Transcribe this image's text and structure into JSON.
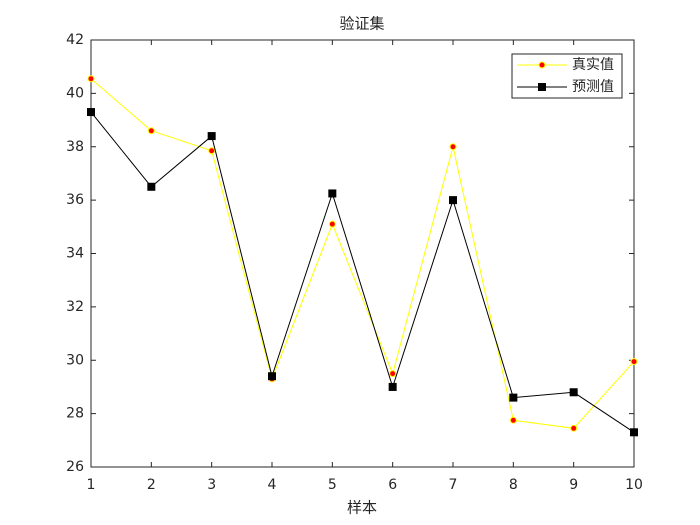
{
  "chart_data": {
    "type": "line",
    "title": "验证集",
    "xlabel": "样本",
    "x": [
      1,
      2,
      3,
      4,
      5,
      6,
      7,
      8,
      9,
      10
    ],
    "series": [
      {
        "name": "真实值",
        "color": "#ffff00",
        "marker": "circle",
        "marker_face": "#ff0000",
        "values": [
          40.55,
          38.6,
          37.85,
          29.3,
          35.1,
          29.5,
          38.0,
          27.75,
          27.45,
          29.95
        ]
      },
      {
        "name": "预测值",
        "color": "#000000",
        "marker": "square",
        "marker_face": "#000000",
        "values": [
          39.3,
          36.5,
          38.4,
          29.4,
          36.25,
          29.0,
          36.0,
          28.6,
          28.8,
          27.3
        ]
      }
    ],
    "xlim": [
      1,
      10
    ],
    "xticks": [
      1,
      2,
      3,
      4,
      5,
      6,
      7,
      8,
      9,
      10
    ],
    "ylim": [
      26,
      42
    ],
    "yticks": [
      26,
      28,
      30,
      32,
      34,
      36,
      38,
      40,
      42
    ],
    "grid": false,
    "legend": "northeast"
  }
}
